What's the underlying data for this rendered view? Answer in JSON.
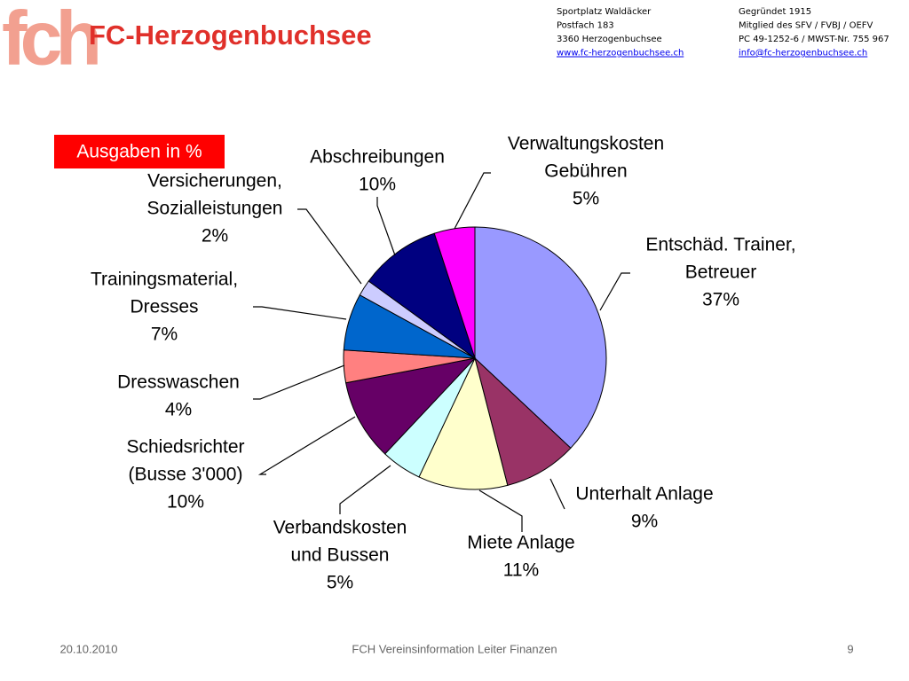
{
  "logo": {
    "mark": "fch",
    "name": "FC-Herzogenbuchsee"
  },
  "address": {
    "left": [
      "Sportplatz Waldäcker",
      "Postfach 183",
      "3360 Herzogenbuchsee",
      "www.fc-herzogenbuchsee.ch"
    ],
    "right": [
      "Gegründet 1915",
      "Mitglied des SFV / FVBJ / OEFV",
      "PC 49-1252-6 / MWST-Nr. 755 967",
      "info@fc-herzogenbuchsee.ch"
    ]
  },
  "footer": {
    "date": "20.10.2010",
    "title": "FCH Vereinsinformation Leiter Finanzen",
    "page": "9"
  },
  "chart_data": {
    "type": "pie",
    "title": "Ausgaben in %",
    "categories": [
      [
        "Entschäd. Trainer,",
        "Betreuer"
      ],
      [
        "Unterhalt Anlage"
      ],
      [
        "Miete Anlage"
      ],
      [
        "Verbandskosten",
        "und Bussen"
      ],
      [
        "Schiedsrichter",
        "(Busse 3'000)"
      ],
      [
        "Dresswaschen"
      ],
      [
        "Trainingsmaterial,",
        "Dresses"
      ],
      [
        "Versicherungen,",
        "Sozialleistungen"
      ],
      [
        "Abschreibungen"
      ],
      [
        "Verwaltungskosten",
        "Gebühren"
      ]
    ],
    "values": [
      37,
      9,
      11,
      5,
      10,
      4,
      7,
      2,
      10,
      5
    ],
    "value_labels": [
      "37%",
      "9%",
      "11%",
      "5%",
      "10%",
      "4%",
      "7%",
      "2%",
      "10%",
      "5%"
    ],
    "colors": [
      "#9999ff",
      "#993366",
      "#ffffcc",
      "#ccffff",
      "#660066",
      "#ff8080",
      "#0066cc",
      "#ccccff",
      "#000080",
      "#ff00ff"
    ]
  }
}
